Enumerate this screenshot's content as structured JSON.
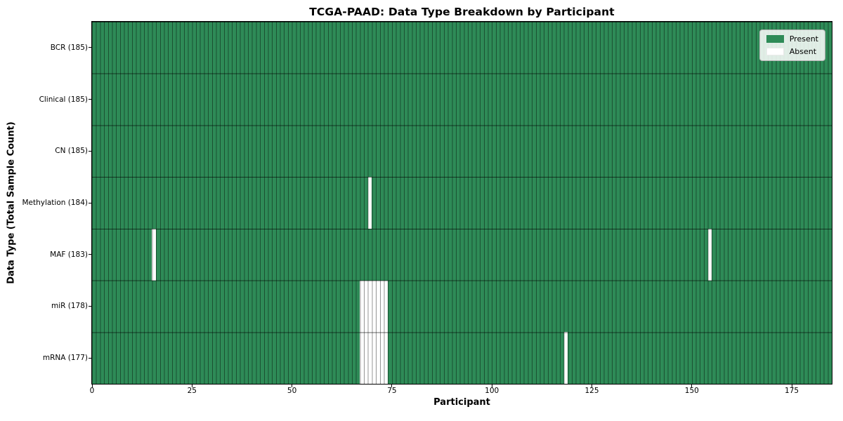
{
  "chart_data": {
    "type": "heatmap",
    "title": "TCGA-PAAD: Data Type Breakdown by Participant",
    "xlabel": "Participant",
    "ylabel": "Data Type (Total Sample Count)",
    "n_participants": 185,
    "x_range": [
      0,
      185
    ],
    "x_ticks": [
      0,
      25,
      50,
      75,
      100,
      125,
      150,
      175
    ],
    "grid": false,
    "legend_position": "upper right",
    "legend": [
      {
        "key": "present",
        "label": "Present",
        "color": "#2e8b57"
      },
      {
        "key": "absent",
        "label": "Absent",
        "color": "#ffffff"
      }
    ],
    "rows": [
      {
        "key": "bcr",
        "label": "BCR (185)",
        "total": 185,
        "absent_participants": []
      },
      {
        "key": "clinical",
        "label": "Clinical (185)",
        "total": 185,
        "absent_participants": []
      },
      {
        "key": "cn",
        "label": "CN (185)",
        "total": 185,
        "absent_participants": []
      },
      {
        "key": "methylation",
        "label": "Methylation (184)",
        "total": 184,
        "absent_participants": [
          69
        ]
      },
      {
        "key": "maf",
        "label": "MAF (183)",
        "total": 183,
        "absent_participants": [
          15,
          154
        ]
      },
      {
        "key": "mir",
        "label": "miR (178)",
        "total": 178,
        "absent_participants": [
          67,
          68,
          69,
          70,
          71,
          72,
          73
        ]
      },
      {
        "key": "mrna",
        "label": "mRNA (177)",
        "total": 177,
        "absent_participants": [
          67,
          68,
          69,
          70,
          71,
          72,
          73,
          118
        ]
      }
    ],
    "colors": {
      "present": "#2e8b57",
      "absent": "#ffffff"
    }
  }
}
